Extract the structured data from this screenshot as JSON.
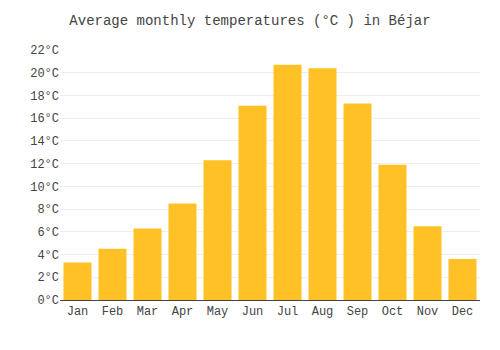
{
  "chart_data": {
    "type": "bar",
    "title": "Average monthly temperatures (°C ) in Béjar",
    "categories": [
      "Jan",
      "Feb",
      "Mar",
      "Apr",
      "May",
      "Jun",
      "Jul",
      "Aug",
      "Sep",
      "Oct",
      "Nov",
      "Dec"
    ],
    "values": [
      3.3,
      4.5,
      6.3,
      8.5,
      12.3,
      17.1,
      20.7,
      20.4,
      17.3,
      11.9,
      6.5,
      3.6
    ],
    "color": "#FFC125",
    "ylim": [
      0,
      22
    ],
    "yticks": [
      {
        "value": 0,
        "label": "0°C"
      },
      {
        "value": 2,
        "label": "2°C"
      },
      {
        "value": 4,
        "label": "4°C"
      },
      {
        "value": 6,
        "label": "6°C"
      },
      {
        "value": 8,
        "label": "8°C"
      },
      {
        "value": 10,
        "label": "10°C"
      },
      {
        "value": 12,
        "label": "12°C"
      },
      {
        "value": 14,
        "label": "14°C"
      },
      {
        "value": 16,
        "label": "16°C"
      },
      {
        "value": 18,
        "label": "18°C"
      },
      {
        "value": 20,
        "label": "20°C"
      },
      {
        "value": 22,
        "label": "22°C"
      }
    ],
    "grid": true
  }
}
